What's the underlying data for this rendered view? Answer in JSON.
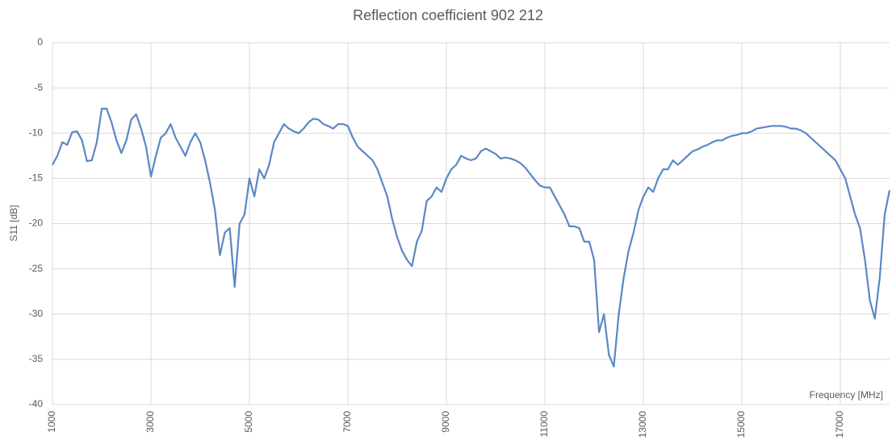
{
  "chart_data": {
    "type": "line",
    "title": "Reflection coefficient 902 212",
    "x_label": "Frequency [MHz]",
    "y_label": "S11 [dB]",
    "x": [
      1000,
      1100,
      1200,
      1300,
      1400,
      1500,
      1600,
      1700,
      1800,
      1900,
      2000,
      2100,
      2200,
      2300,
      2400,
      2500,
      2600,
      2700,
      2800,
      2900,
      3000,
      3100,
      3200,
      3300,
      3400,
      3500,
      3600,
      3700,
      3800,
      3900,
      4000,
      4100,
      4200,
      4300,
      4400,
      4500,
      4600,
      4700,
      4800,
      4900,
      5000,
      5100,
      5200,
      5300,
      5400,
      5500,
      5600,
      5700,
      5800,
      5900,
      6000,
      6100,
      6200,
      6300,
      6400,
      6500,
      6600,
      6700,
      6800,
      6900,
      7000,
      7100,
      7200,
      7300,
      7400,
      7500,
      7600,
      7700,
      7800,
      7900,
      8000,
      8100,
      8200,
      8300,
      8400,
      8500,
      8600,
      8700,
      8800,
      8900,
      9000,
      9100,
      9200,
      9300,
      9400,
      9500,
      9600,
      9700,
      9800,
      9900,
      10000,
      10100,
      10200,
      10300,
      10400,
      10500,
      10600,
      10700,
      10800,
      10900,
      11000,
      11100,
      11200,
      11300,
      11400,
      11500,
      11600,
      11700,
      11800,
      11900,
      12000,
      12100,
      12200,
      12300,
      12400,
      12500,
      12600,
      12700,
      12800,
      12900,
      13000,
      13100,
      13200,
      13300,
      13400,
      13500,
      13600,
      13700,
      13800,
      13900,
      14000,
      14100,
      14200,
      14300,
      14400,
      14500,
      14600,
      14700,
      14800,
      14900,
      15000,
      15100,
      15200,
      15300,
      15400,
      15500,
      15600,
      15700,
      15800,
      15900,
      16000,
      16100,
      16200,
      16300,
      16400,
      16500,
      16600,
      16700,
      16800,
      16900,
      17000,
      17100,
      17200,
      17300,
      17400,
      17500,
      17600,
      17700,
      17800,
      17900,
      18000
    ],
    "values": [
      -13.5,
      -12.5,
      -11,
      -11.3,
      -9.9,
      -9.8,
      -10.8,
      -13.1,
      -13,
      -11,
      -7.3,
      -7.3,
      -8.8,
      -10.8,
      -12.2,
      -10.8,
      -8.5,
      -7.9,
      -9.5,
      -11.5,
      -14.8,
      -12.5,
      -10.5,
      -10,
      -9,
      -10.5,
      -11.5,
      -12.5,
      -11,
      -10,
      -11,
      -13,
      -15.5,
      -18.5,
      -23.5,
      -21,
      -20.5,
      -27,
      -20,
      -19,
      -15,
      -17,
      -14,
      -15,
      -13.5,
      -11,
      -10,
      -9,
      -9.5,
      -9.8,
      -10,
      -9.5,
      -8.8,
      -8.4,
      -8.5,
      -9,
      -9.2,
      -9.5,
      -9,
      -9,
      -9.2,
      -10.5,
      -11.5,
      -12,
      -12.5,
      -13,
      -14,
      -15.5,
      -17,
      -19.5,
      -21.5,
      -23,
      -24,
      -24.7,
      -22,
      -20.8,
      -17.5,
      -17,
      -16,
      -16.5,
      -15,
      -14,
      -13.5,
      -12.5,
      -12.8,
      -13,
      -12.8,
      -12,
      -11.7,
      -12,
      -12.3,
      -12.8,
      -12.7,
      -12.8,
      -13,
      -13.3,
      -13.8,
      -14.5,
      -15.2,
      -15.8,
      -16,
      -16,
      -17,
      -18,
      -19,
      -20.3,
      -20.3,
      -20.5,
      -22,
      -22,
      -24,
      -32,
      -30,
      -34.5,
      -35.8,
      -30,
      -26,
      -23,
      -21,
      -18.5,
      -17,
      -16,
      -16.5,
      -15,
      -14,
      -14,
      -13,
      -13.5,
      -13,
      -12.5,
      -12,
      -11.8,
      -11.5,
      -11.3,
      -11,
      -10.8,
      -10.8,
      -10.5,
      -10.3,
      -10.2,
      -10,
      -10,
      -9.8,
      -9.5,
      -9.4,
      -9.3,
      -9.2,
      -9.2,
      -9.2,
      -9.3,
      -9.5,
      -9.5,
      -9.7,
      -10,
      -10.5,
      -11,
      -11.5,
      -12,
      -12.5,
      -13,
      -14,
      -15,
      -17,
      -19,
      -20.5,
      -24,
      -28.5,
      -30.5,
      -26,
      -19,
      -16.3
    ],
    "color": "#5b87c4",
    "xlim": [
      1000,
      18000
    ],
    "xticks": [
      1000,
      3000,
      5000,
      7000,
      9000,
      11000,
      13000,
      15000,
      17000
    ],
    "ylim": [
      -40,
      0
    ],
    "yticks": [
      0,
      -5,
      -10,
      -15,
      -20,
      -25,
      -30,
      -35,
      -40
    ],
    "grid": true
  }
}
